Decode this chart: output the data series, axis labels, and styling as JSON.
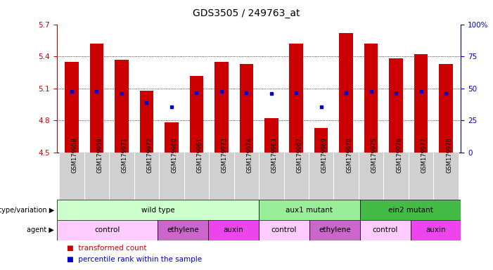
{
  "title": "GDS3505 / 249763_at",
  "samples": [
    "GSM179958",
    "GSM179959",
    "GSM179971",
    "GSM179972",
    "GSM179960",
    "GSM179961",
    "GSM179973",
    "GSM179974",
    "GSM179963",
    "GSM179967",
    "GSM179969",
    "GSM179970",
    "GSM179975",
    "GSM179976",
    "GSM179977",
    "GSM179978"
  ],
  "bar_values": [
    5.35,
    5.52,
    5.37,
    5.08,
    4.78,
    5.22,
    5.35,
    5.33,
    4.82,
    5.52,
    4.73,
    5.62,
    5.52,
    5.38,
    5.42,
    5.33
  ],
  "bar_base": 4.5,
  "blue_dot_values": [
    5.07,
    5.07,
    5.05,
    4.97,
    4.93,
    5.06,
    5.07,
    5.06,
    5.05,
    5.06,
    4.93,
    5.06,
    5.07,
    5.05,
    5.07,
    5.05
  ],
  "ylim_left": [
    4.5,
    5.7
  ],
  "ylim_right": [
    0,
    100
  ],
  "yticks_left": [
    4.5,
    4.8,
    5.1,
    5.4,
    5.7
  ],
  "yticks_right": [
    0,
    25,
    50,
    75,
    100
  ],
  "bar_color": "#cc0000",
  "blue_dot_color": "#0000cc",
  "genotype_groups": [
    {
      "label": "wild type",
      "start": 0,
      "end": 8,
      "color": "#ccffcc"
    },
    {
      "label": "aux1 mutant",
      "start": 8,
      "end": 12,
      "color": "#99ee99"
    },
    {
      "label": "ein2 mutant",
      "start": 12,
      "end": 16,
      "color": "#44bb44"
    }
  ],
  "agent_groups": [
    {
      "label": "control",
      "start": 0,
      "end": 4,
      "color": "#ffccff"
    },
    {
      "label": "ethylene",
      "start": 4,
      "end": 6,
      "color": "#cc66cc"
    },
    {
      "label": "auxin",
      "start": 6,
      "end": 8,
      "color": "#ee44ee"
    },
    {
      "label": "control",
      "start": 8,
      "end": 10,
      "color": "#ffccff"
    },
    {
      "label": "ethylene",
      "start": 10,
      "end": 12,
      "color": "#cc66cc"
    },
    {
      "label": "control",
      "start": 12,
      "end": 14,
      "color": "#ffccff"
    },
    {
      "label": "auxin",
      "start": 14,
      "end": 16,
      "color": "#ee44ee"
    }
  ],
  "left_axis_color": "#cc0000",
  "right_axis_color": "#0000bb",
  "bar_color_legend": "#cc0000",
  "blue_color_legend": "#0000cc",
  "grid_levels": [
    4.8,
    5.1,
    5.4
  ],
  "xlabel_fontsize": 6.0,
  "tick_label_fontsize": 7.5,
  "annotation_fontsize": 7.5,
  "title_fontsize": 10
}
